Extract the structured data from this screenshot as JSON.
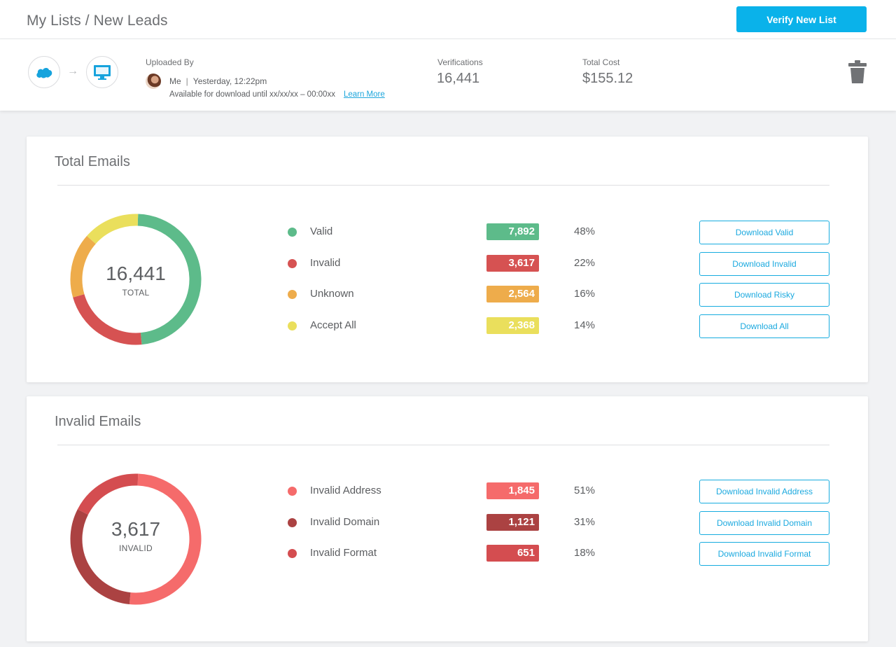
{
  "header": {
    "breadcrumb": "My Lists / New Leads",
    "primary_button": "Verify New List"
  },
  "info": {
    "source_icon": "salesforce-cloud-icon",
    "destination_icon": "desktop-monitor-icon",
    "arrow": "→",
    "uploaded_by_label": "Uploaded By",
    "uploader": "Me",
    "separator": "|",
    "uploaded_at": "Yesterday, 12:22pm",
    "availability": "Available for download until xx/xx/xx – 00:00xx",
    "learn_more": "Learn More",
    "verifications_label": "Verifications",
    "verifications_value": "16,441",
    "cost_label": "Total Cost",
    "cost_value": "$155.12",
    "trash_icon": "trash-icon"
  },
  "total_card": {
    "title": "Total Emails",
    "center_value": "16,441",
    "center_label": "TOTAL",
    "rows": [
      {
        "label": "Valid",
        "count": "7,892",
        "pct": "48%",
        "value": 48,
        "color": "#5dbb8a",
        "button": "Download Valid"
      },
      {
        "label": "Invalid",
        "count": "3,617",
        "pct": "22%",
        "value": 22,
        "color": "#d65252",
        "button": "Download Invalid"
      },
      {
        "label": "Unknown",
        "count": "2,564",
        "pct": "16%",
        "value": 16,
        "color": "#eeac4b",
        "button": "Download Risky"
      },
      {
        "label": "Accept All",
        "count": "2,368",
        "pct": "14%",
        "value": 14,
        "color": "#eadf5c",
        "button": "Download All"
      }
    ]
  },
  "invalid_card": {
    "title": "Invalid Emails",
    "center_value": "3,617",
    "center_label": "INVALID",
    "rows": [
      {
        "label": "Invalid Address",
        "count": "1,845",
        "pct": "51%",
        "value": 51,
        "color": "#f56b6b",
        "button": "Download Invalid Address"
      },
      {
        "label": "Invalid Domain",
        "count": "1,121",
        "pct": "31%",
        "value": 31,
        "color": "#ab4242",
        "button": "Download Invalid Domain"
      },
      {
        "label": "Invalid Format",
        "count": "651",
        "pct": "18%",
        "value": 18,
        "color": "#d44d50",
        "button": "Download Invalid Format"
      }
    ]
  }
}
